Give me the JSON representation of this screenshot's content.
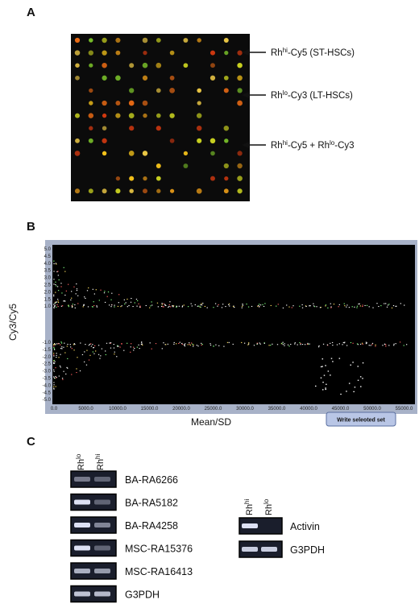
{
  "panel_a": {
    "label": "A",
    "annotations": [
      [
        {
          "text": "Rh",
          "sup": false
        },
        {
          "text": "hi",
          "sup": true
        },
        {
          "text": "-Cy5 (ST-HSCs)",
          "sup": false
        }
      ],
      [
        {
          "text": "Rh",
          "sup": false
        },
        {
          "text": "lo",
          "sup": true
        },
        {
          "text": "-Cy3 (LT-HSCs)",
          "sup": false
        }
      ],
      [
        {
          "text": "Rh",
          "sup": false
        },
        {
          "text": "hi",
          "sup": true
        },
        {
          "text": "-Cy5 + Rh",
          "sup": false
        },
        {
          "text": "lo",
          "sup": true
        },
        {
          "text": "-Cy3",
          "sup": false
        }
      ]
    ]
  },
  "panel_b": {
    "label": "B",
    "y_label": "Cy3/Cy5",
    "x_label": "Mean/SD",
    "y_ticks_upper": [
      "5.0",
      "4.5",
      "4.0",
      "3.5",
      "3.0",
      "2.5",
      "2.0",
      "1.5",
      "1.0"
    ],
    "y_ticks_lower": [
      "-1.0",
      "-1.5",
      "-2.0",
      "-2.5",
      "-3.0",
      "-3.5",
      "-4.0",
      "-4.5",
      "-5.0"
    ],
    "x_ticks": [
      "0.0",
      "5000.0",
      "10000.0",
      "15000.0",
      "20000.0",
      "25000.0",
      "30000.0",
      "35000.0",
      "40000.0",
      "45000.0",
      "50000.0",
      "55000.0"
    ],
    "button": "Write seleoted set"
  },
  "panel_c": {
    "label": "C",
    "left_gel": {
      "columns": [
        [
          {
            "text": "Rh",
            "sup": false
          },
          {
            "text": "lo",
            "sup": true
          }
        ],
        [
          {
            "text": "Rh",
            "sup": false
          },
          {
            "text": "hi",
            "sup": true
          }
        ]
      ],
      "rows": [
        "BA-RA6266",
        "BA-RA5182",
        "BA-RA4258",
        "MSC-RA15376",
        "MSC-RA16413",
        "G3PDH"
      ]
    },
    "right_gel": {
      "columns": [
        [
          {
            "text": "Rh",
            "sup": false
          },
          {
            "text": "hi",
            "sup": true
          }
        ],
        [
          {
            "text": "Rh",
            "sup": false
          },
          {
            "text": "lo",
            "sup": true
          }
        ]
      ],
      "rows": [
        "Activin",
        "G3PDH"
      ]
    }
  }
}
